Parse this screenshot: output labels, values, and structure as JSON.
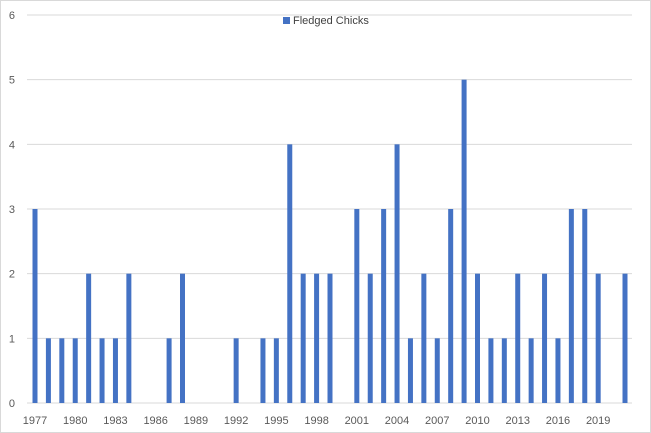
{
  "chart_data": {
    "type": "bar",
    "series": [
      {
        "name": "Fledged Chicks",
        "x": [
          1977,
          1978,
          1979,
          1980,
          1981,
          1982,
          1983,
          1984,
          1985,
          1986,
          1987,
          1988,
          1989,
          1990,
          1991,
          1992,
          1993,
          1994,
          1995,
          1996,
          1997,
          1998,
          1999,
          2000,
          2001,
          2002,
          2003,
          2004,
          2005,
          2006,
          2007,
          2008,
          2009,
          2010,
          2011,
          2012,
          2013,
          2014,
          2015,
          2016,
          2017,
          2018,
          2019,
          2020,
          2021
        ],
        "values": [
          3,
          1,
          1,
          1,
          2,
          1,
          1,
          2,
          0,
          0,
          1,
          2,
          0,
          0,
          0,
          1,
          0,
          1,
          1,
          4,
          2,
          2,
          2,
          0,
          3,
          2,
          3,
          4,
          1,
          2,
          1,
          3,
          5,
          2,
          1,
          1,
          2,
          1,
          2,
          1,
          3,
          3,
          2,
          0,
          2
        ]
      }
    ],
    "x_tick_labels": [
      "1977",
      "1980",
      "1983",
      "1986",
      "1989",
      "1992",
      "1995",
      "1998",
      "2001",
      "2004",
      "2007",
      "2010",
      "2013",
      "2016",
      "2019"
    ],
    "y_tick_labels": [
      "0",
      "1",
      "2",
      "3",
      "4",
      "5",
      "6"
    ],
    "ylim": [
      0,
      6
    ],
    "xlim": [
      1977,
      2021
    ],
    "grid": "horizontal",
    "legend_position": "top-center",
    "colors": {
      "bar": "#4472c4",
      "grid": "#d9d9d9",
      "axis": "#d9d9d9"
    }
  }
}
